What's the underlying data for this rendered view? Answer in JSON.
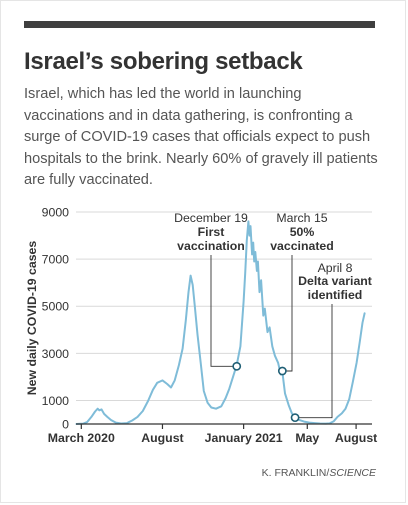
{
  "header": {
    "title": "Israel’s sobering setback",
    "subtitle": "Israel, which has led the world in launching vaccinations and in data gathering, is confronting a surge of COVID-19 cases that officials expect to push hospitals to the brink. Nearly 60% of gravely ill patients are fully vaccinated."
  },
  "credit": {
    "author": "K. FRANKLIN/",
    "source": "SCIENCE"
  },
  "colors": {
    "line": "#7fbcd8",
    "grid": "#d9d9d9",
    "axis": "#333333",
    "text": "#333333",
    "marker_stroke": "#1f5f75",
    "accent_bar": "#3f3f3f"
  },
  "chart_data": {
    "type": "line",
    "title": "",
    "xlabel": "",
    "ylabel": "New daily COVID-19 cases",
    "ylim": [
      0,
      9000
    ],
    "y_ticks": [
      0,
      1000,
      3000,
      5000,
      7000,
      9000
    ],
    "y_tick_labels": [
      "0",
      "1000",
      "3000",
      "5000",
      "7000",
      "9000"
    ],
    "xlim": [
      "2020-02-20",
      "2021-08-31"
    ],
    "x_ticks": [
      {
        "date": "2020-03-01",
        "label": "March 2020"
      },
      {
        "date": "2020-08-01",
        "label": "August"
      },
      {
        "date": "2021-01-01",
        "label": "January 2021"
      },
      {
        "date": "2021-05-01",
        "label": "May"
      },
      {
        "date": "2021-08-01",
        "label": "August"
      }
    ],
    "grid": true,
    "series": [
      {
        "values": [
          [
            "2020-02-21",
            0
          ],
          [
            "2020-03-05",
            15
          ],
          [
            "2020-03-12",
            80
          ],
          [
            "2020-03-20",
            300
          ],
          [
            "2020-03-27",
            530
          ],
          [
            "2020-04-01",
            650
          ],
          [
            "2020-04-04",
            580
          ],
          [
            "2020-04-08",
            620
          ],
          [
            "2020-04-13",
            430
          ],
          [
            "2020-04-19",
            300
          ],
          [
            "2020-04-26",
            170
          ],
          [
            "2020-05-05",
            60
          ],
          [
            "2020-05-15",
            20
          ],
          [
            "2020-05-26",
            40
          ],
          [
            "2020-06-05",
            150
          ],
          [
            "2020-06-15",
            300
          ],
          [
            "2020-06-25",
            550
          ],
          [
            "2020-07-05",
            980
          ],
          [
            "2020-07-14",
            1450
          ],
          [
            "2020-07-22",
            1750
          ],
          [
            "2020-08-01",
            1850
          ],
          [
            "2020-08-10",
            1700
          ],
          [
            "2020-08-17",
            1550
          ],
          [
            "2020-08-24",
            1850
          ],
          [
            "2020-09-01",
            2500
          ],
          [
            "2020-09-08",
            3200
          ],
          [
            "2020-09-14",
            4400
          ],
          [
            "2020-09-19",
            5600
          ],
          [
            "2020-09-23",
            6300
          ],
          [
            "2020-09-27",
            5900
          ],
          [
            "2020-10-01",
            5000
          ],
          [
            "2020-10-06",
            3800
          ],
          [
            "2020-10-12",
            2600
          ],
          [
            "2020-10-18",
            1400
          ],
          [
            "2020-10-25",
            900
          ],
          [
            "2020-11-01",
            700
          ],
          [
            "2020-11-10",
            650
          ],
          [
            "2020-11-20",
            750
          ],
          [
            "2020-11-28",
            1100
          ],
          [
            "2020-12-05",
            1500
          ],
          [
            "2020-12-12",
            2000
          ],
          [
            "2020-12-19",
            2500
          ],
          [
            "2020-12-26",
            3300
          ],
          [
            "2021-01-01",
            5200
          ],
          [
            "2021-01-04",
            6400
          ],
          [
            "2021-01-07",
            7800
          ],
          [
            "2021-01-10",
            8600
          ],
          [
            "2021-01-12",
            8000
          ],
          [
            "2021-01-14",
            8400
          ],
          [
            "2021-01-17",
            7200
          ],
          [
            "2021-01-19",
            7700
          ],
          [
            "2021-01-21",
            6900
          ],
          [
            "2021-01-23",
            7300
          ],
          [
            "2021-01-26",
            6500
          ],
          [
            "2021-01-28",
            6900
          ],
          [
            "2021-01-31",
            5600
          ],
          [
            "2021-02-03",
            6100
          ],
          [
            "2021-02-07",
            4600
          ],
          [
            "2021-02-10",
            4900
          ],
          [
            "2021-02-15",
            3900
          ],
          [
            "2021-02-19",
            4100
          ],
          [
            "2021-02-24",
            3300
          ],
          [
            "2021-03-01",
            2900
          ],
          [
            "2021-03-07",
            2600
          ],
          [
            "2021-03-12",
            2100
          ],
          [
            "2021-03-15",
            2200
          ],
          [
            "2021-03-20",
            1300
          ],
          [
            "2021-03-27",
            800
          ],
          [
            "2021-04-02",
            450
          ],
          [
            "2021-04-08",
            280
          ],
          [
            "2021-04-15",
            180
          ],
          [
            "2021-04-25",
            100
          ],
          [
            "2021-05-05",
            60
          ],
          [
            "2021-05-15",
            40
          ],
          [
            "2021-05-25",
            20
          ],
          [
            "2021-06-05",
            15
          ],
          [
            "2021-06-12",
            25
          ],
          [
            "2021-06-20",
            120
          ],
          [
            "2021-06-27",
            300
          ],
          [
            "2021-07-05",
            450
          ],
          [
            "2021-07-12",
            650
          ],
          [
            "2021-07-19",
            1050
          ],
          [
            "2021-07-26",
            1800
          ],
          [
            "2021-08-02",
            2600
          ],
          [
            "2021-08-08",
            3500
          ],
          [
            "2021-08-13",
            4300
          ],
          [
            "2021-08-17",
            4700
          ]
        ]
      }
    ],
    "annotations": [
      {
        "date": "2020-12-19",
        "y": 2450,
        "label_date": "December 19",
        "label_lines": [
          "First",
          "vaccination"
        ]
      },
      {
        "date": "2021-03-15",
        "y": 2250,
        "label_date": "March 15",
        "label_lines": [
          "50%",
          "vaccinated"
        ]
      },
      {
        "date": "2021-04-08",
        "y": 270,
        "label_date": "April 8",
        "label_lines": [
          "Delta variant",
          "identified"
        ]
      }
    ]
  }
}
